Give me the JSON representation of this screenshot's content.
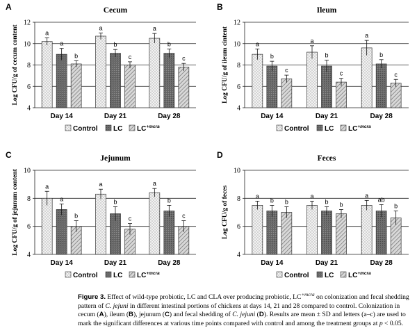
{
  "colors": {
    "control": "#e8e8e8",
    "lc": "#6e6e6e",
    "lc_mcra": "#b4b4b4",
    "grid": "#000000"
  },
  "legend": {
    "control": "Control",
    "lc": "LC",
    "lc_mcra_base": "LC",
    "lc_mcra_sup": "+mcra"
  },
  "chart_data": [
    {
      "type": "bar",
      "panel": "A",
      "title": "Cecum",
      "ylabel": "Log CFU/g of cecum content",
      "ylim": [
        4,
        12
      ],
      "yticks": [
        4,
        6,
        8,
        10,
        12
      ],
      "categories": [
        "Day 14",
        "Day 21",
        "Day 28"
      ],
      "series": [
        {
          "name": "Control",
          "values": [
            10.2,
            10.7,
            10.5
          ],
          "errors": [
            0.35,
            0.3,
            0.45
          ],
          "letters": [
            "a",
            "a",
            "a"
          ]
        },
        {
          "name": "LC",
          "values": [
            9.0,
            9.1,
            9.1
          ],
          "errors": [
            0.55,
            0.35,
            0.4
          ],
          "letters": [
            "a",
            "b",
            "b"
          ]
        },
        {
          "name": "LC+mcra",
          "values": [
            8.1,
            8.0,
            7.8
          ],
          "errors": [
            0.3,
            0.3,
            0.35
          ],
          "letters": [
            "b",
            "c",
            "c"
          ]
        }
      ]
    },
    {
      "type": "bar",
      "panel": "B",
      "title": "Ileum",
      "ylabel": "Log CFU/g of ileum cintent",
      "ylim": [
        4,
        12
      ],
      "yticks": [
        4,
        6,
        8,
        10,
        12
      ],
      "categories": [
        "Day 14",
        "Day 21",
        "Day 28"
      ],
      "series": [
        {
          "name": "Control",
          "values": [
            9.0,
            9.2,
            9.6
          ],
          "errors": [
            0.5,
            0.6,
            0.7
          ],
          "letters": [
            "a",
            "a",
            "a"
          ]
        },
        {
          "name": "LC",
          "values": [
            7.9,
            7.9,
            8.1
          ],
          "errors": [
            0.45,
            0.55,
            0.4
          ],
          "letters": [
            "b",
            "b",
            "b"
          ]
        },
        {
          "name": "LC+mcra",
          "values": [
            6.7,
            6.4,
            6.3
          ],
          "errors": [
            0.35,
            0.35,
            0.35
          ],
          "letters": [
            "c",
            "c",
            "c"
          ]
        }
      ]
    },
    {
      "type": "bar",
      "panel": "C",
      "title": "Jejunum",
      "ylabel": "Log CFU/g of jejunum content",
      "ylim": [
        4,
        10
      ],
      "yticks": [
        4,
        6,
        8,
        10
      ],
      "categories": [
        "Day 14",
        "Day 21",
        "Day 28"
      ],
      "series": [
        {
          "name": "Control",
          "values": [
            8.0,
            8.3,
            8.4
          ],
          "errors": [
            0.5,
            0.35,
            0.3
          ],
          "letters": [
            "a",
            "a",
            "a"
          ]
        },
        {
          "name": "LC",
          "values": [
            7.2,
            6.9,
            7.1
          ],
          "errors": [
            0.4,
            0.5,
            0.4
          ],
          "letters": [
            "a",
            "b",
            "b"
          ]
        },
        {
          "name": "LC+mcra",
          "values": [
            6.0,
            5.8,
            6.0
          ],
          "errors": [
            0.4,
            0.4,
            0.4
          ],
          "letters": [
            "b",
            "c",
            "c"
          ]
        }
      ]
    },
    {
      "type": "bar",
      "panel": "D",
      "title": "Feces",
      "ylabel": "Log CFU/g of feces",
      "ylim": [
        4,
        10
      ],
      "yticks": [
        4,
        6,
        8,
        10
      ],
      "categories": [
        "Day 14",
        "Day 21",
        "Day 28"
      ],
      "series": [
        {
          "name": "Control",
          "values": [
            7.5,
            7.5,
            7.5
          ],
          "errors": [
            0.3,
            0.3,
            0.35
          ],
          "letters": [
            "a",
            "a",
            "a"
          ]
        },
        {
          "name": "LC",
          "values": [
            7.1,
            7.1,
            7.1
          ],
          "errors": [
            0.4,
            0.3,
            0.45
          ],
          "letters": [
            "b",
            "b",
            "ab"
          ]
        },
        {
          "name": "LC+mcra",
          "values": [
            7.0,
            6.9,
            6.6
          ],
          "errors": [
            0.4,
            0.3,
            0.5
          ],
          "letters": [
            "b",
            "b",
            "b"
          ]
        }
      ]
    }
  ],
  "caption": {
    "label": "Figure 3.",
    "t1": "Effect of wild-type probiotic, LC and CLA over producing probiotic, LC",
    "sup": "+mcra",
    "t2": " on colonization and fecal shedding pattern of ",
    "cj1": "C. jejuni",
    "t3": " in different intestinal portions of chickens at days 14, 21 and 28 compared to control. Colonization in cecum (",
    "A": "A",
    "t4": "), ileum (",
    "B": "B",
    "t5": "), jejunum (",
    "C": "C",
    "t6": ") and fecal shedding of ",
    "cj2": "C. jejuni",
    "t7": " (",
    "D": "D",
    "t8": "). Results are mean ± SD and letters (a–c) are used to mark the significant differences at various time points compared with control and among the treatment groups at ",
    "p": "p",
    "t9": " < 0.05."
  }
}
